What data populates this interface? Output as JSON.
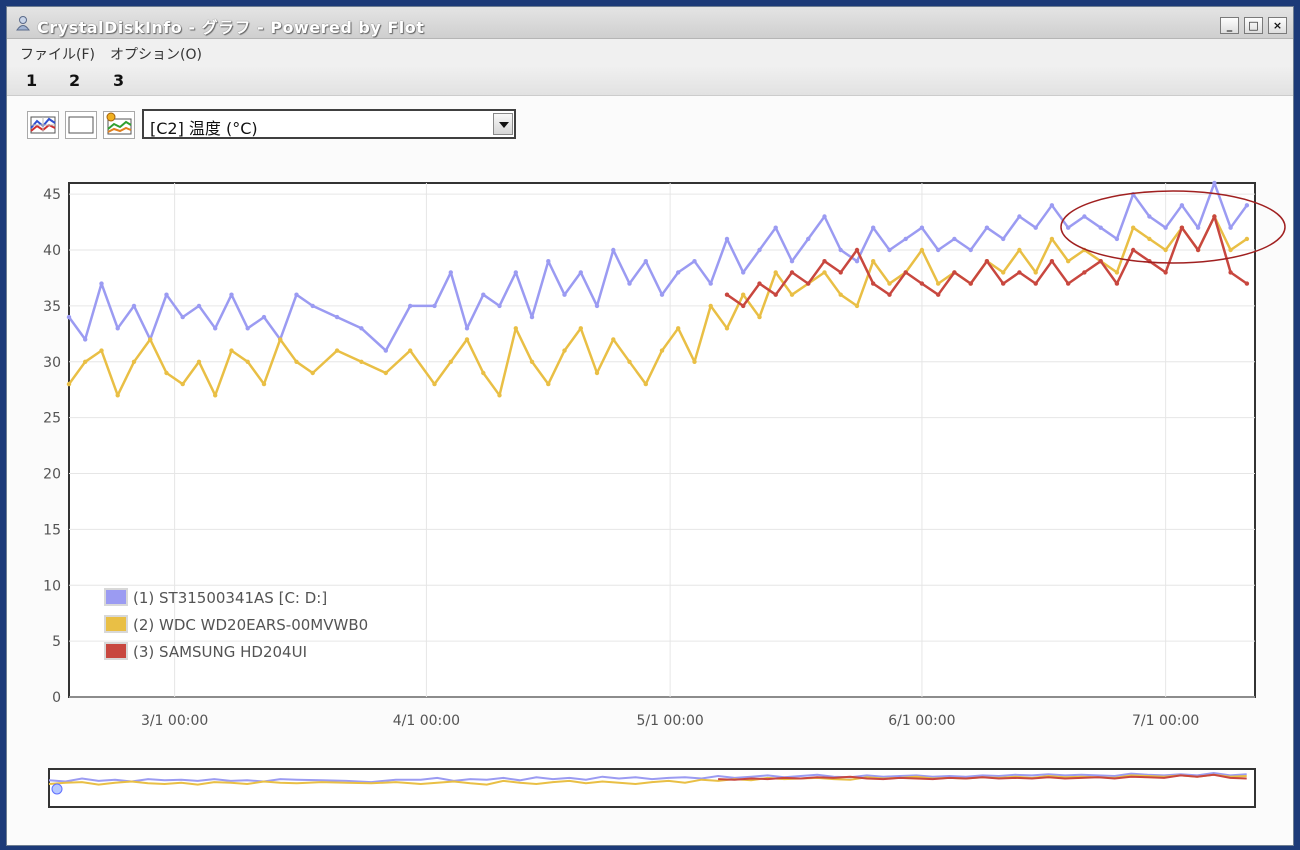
{
  "window": {
    "title": "CrystalDiskInfo - グラフ - Powered by Flot",
    "controls": [
      "_",
      "□",
      "×"
    ]
  },
  "menu": [
    {
      "label": "ファイル(F)"
    },
    {
      "label": "オプション(O)"
    }
  ],
  "tabs": [
    "1",
    "2",
    "3"
  ],
  "toolbar": {
    "icons": [
      "all-disks-icon",
      "blank-icon",
      "settings-icon"
    ],
    "selected_attribute": "[C2] 温度 (°C)"
  },
  "colors": {
    "series1": "#9b9bf2",
    "series2": "#e9bf45",
    "series3": "#c8473f",
    "annotation": "#a02020"
  },
  "chart_data": {
    "type": "line",
    "ylim": [
      0,
      46
    ],
    "yticks": [
      0,
      5,
      10,
      15,
      20,
      25,
      30,
      35,
      40,
      45
    ],
    "xlim": [
      "2010-02-16",
      "2010-07-12"
    ],
    "xtick_labels": [
      "3/1 00:00",
      "4/1 00:00",
      "5/1 00:00",
      "6/1 00:00",
      "7/1 00:00"
    ],
    "grid": true,
    "legend_placement": "bottom-left",
    "annotation": "ellipse around the peak of 46 near 7/1",
    "series": [
      {
        "name": "(1) ST31500341AS [C: D:]",
        "color_key": "series1",
        "x": [
          "2/16",
          "2/18",
          "2/20",
          "2/22",
          "2/24",
          "2/26",
          "2/28",
          "3/2",
          "3/4",
          "3/6",
          "3/8",
          "3/10",
          "3/12",
          "3/14",
          "3/16",
          "3/18",
          "3/21",
          "3/24",
          "3/27",
          "3/30",
          "4/2",
          "4/4",
          "4/6",
          "4/8",
          "4/10",
          "4/12",
          "4/14",
          "4/16",
          "4/18",
          "4/20",
          "4/22",
          "4/24",
          "4/26",
          "4/28",
          "4/30",
          "5/2",
          "5/4",
          "5/6",
          "5/8",
          "5/10",
          "5/12",
          "5/14",
          "5/16",
          "5/18",
          "5/20",
          "5/22",
          "5/24",
          "5/26",
          "5/28",
          "5/30",
          "6/1",
          "6/3",
          "6/5",
          "6/7",
          "6/9",
          "6/11",
          "6/13",
          "6/15",
          "6/17",
          "6/19",
          "6/21",
          "6/23",
          "6/25",
          "6/27",
          "6/29",
          "7/1",
          "7/3",
          "7/5",
          "7/7",
          "7/9",
          "7/11"
        ],
        "y": [
          34,
          32,
          37,
          33,
          35,
          32,
          36,
          34,
          35,
          33,
          36,
          33,
          34,
          32,
          36,
          35,
          34,
          33,
          31,
          35,
          35,
          38,
          33,
          36,
          35,
          38,
          34,
          39,
          36,
          38,
          35,
          40,
          37,
          39,
          36,
          38,
          39,
          37,
          41,
          38,
          40,
          42,
          39,
          41,
          43,
          40,
          39,
          42,
          40,
          41,
          42,
          40,
          41,
          40,
          42,
          41,
          43,
          42,
          44,
          42,
          43,
          42,
          41,
          45,
          43,
          42,
          44,
          42,
          46,
          42,
          44
        ]
      },
      {
        "name": "(2) WDC WD20EARS-00MVWB0",
        "color_key": "series2",
        "x": [
          "2/16",
          "2/18",
          "2/20",
          "2/22",
          "2/24",
          "2/26",
          "2/28",
          "3/2",
          "3/4",
          "3/6",
          "3/8",
          "3/10",
          "3/12",
          "3/14",
          "3/16",
          "3/18",
          "3/21",
          "3/24",
          "3/27",
          "3/30",
          "4/2",
          "4/4",
          "4/6",
          "4/8",
          "4/10",
          "4/12",
          "4/14",
          "4/16",
          "4/18",
          "4/20",
          "4/22",
          "4/24",
          "4/26",
          "4/28",
          "4/30",
          "5/2",
          "5/4",
          "5/6",
          "5/8",
          "5/10",
          "5/12",
          "5/14",
          "5/16",
          "5/18",
          "5/20",
          "5/22",
          "5/24",
          "5/26",
          "5/28",
          "5/30",
          "6/1",
          "6/3",
          "6/5",
          "6/7",
          "6/9",
          "6/11",
          "6/13",
          "6/15",
          "6/17",
          "6/19",
          "6/21",
          "6/23",
          "6/25",
          "6/27",
          "6/29",
          "7/1",
          "7/3",
          "7/5",
          "7/7",
          "7/9",
          "7/11"
        ],
        "y": [
          28,
          30,
          31,
          27,
          30,
          32,
          29,
          28,
          30,
          27,
          31,
          30,
          28,
          32,
          30,
          29,
          31,
          30,
          29,
          31,
          28,
          30,
          32,
          29,
          27,
          33,
          30,
          28,
          31,
          33,
          29,
          32,
          30,
          28,
          31,
          33,
          30,
          35,
          33,
          36,
          34,
          38,
          36,
          37,
          38,
          36,
          35,
          39,
          37,
          38,
          40,
          37,
          38,
          37,
          39,
          38,
          40,
          38,
          41,
          39,
          40,
          39,
          38,
          42,
          41,
          40,
          42,
          40,
          43,
          40,
          41
        ]
      },
      {
        "name": "(3) SAMSUNG HD204UI",
        "color_key": "series3",
        "x": [
          "5/8",
          "5/10",
          "5/12",
          "5/14",
          "5/16",
          "5/18",
          "5/20",
          "5/22",
          "5/24",
          "5/26",
          "5/28",
          "5/30",
          "6/1",
          "6/3",
          "6/5",
          "6/7",
          "6/9",
          "6/11",
          "6/13",
          "6/15",
          "6/17",
          "6/19",
          "6/21",
          "6/23",
          "6/25",
          "6/27",
          "6/29",
          "7/1",
          "7/3",
          "7/5",
          "7/7",
          "7/9",
          "7/11"
        ],
        "y": [
          36,
          35,
          37,
          36,
          38,
          37,
          39,
          38,
          40,
          37,
          36,
          38,
          37,
          36,
          38,
          37,
          39,
          37,
          38,
          37,
          39,
          37,
          38,
          39,
          37,
          40,
          39,
          38,
          42,
          40,
          43,
          38,
          37
        ]
      }
    ]
  }
}
